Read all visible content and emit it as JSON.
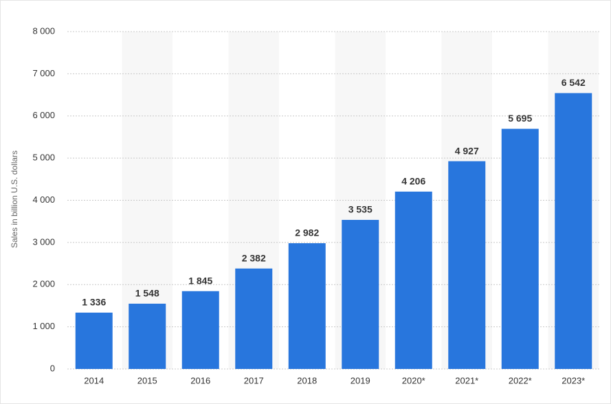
{
  "chart_data": {
    "type": "bar",
    "y_label": "Sales in billion U.S. dollars",
    "categories": [
      "2014",
      "2015",
      "2016",
      "2017",
      "2018",
      "2019",
      "2020*",
      "2021*",
      "2022*",
      "2023*"
    ],
    "values": [
      1336,
      1548,
      1845,
      2382,
      2982,
      3535,
      4206,
      4927,
      5695,
      6542
    ],
    "value_labels": [
      "1 336",
      "1 548",
      "1 845",
      "2 382",
      "2 982",
      "3 535",
      "4 206",
      "4 927",
      "5 695",
      "6 542"
    ],
    "color": "#2876dd",
    "ylim": [
      0,
      8000
    ],
    "yticks": [
      0,
      {
        "value": 1000,
        "label": "1 000"
      },
      {
        "value": 2000,
        "label": "2 000"
      },
      {
        "value": 3000,
        "label": "3 000"
      },
      {
        "value": 4000,
        "label": "4 000"
      },
      {
        "value": 5000,
        "label": "5 000"
      },
      {
        "value": 6000,
        "label": "6 000"
      },
      {
        "value": 7000,
        "label": "7 000"
      },
      {
        "value": 8000,
        "label": "8 000"
      }
    ],
    "grid": true
  }
}
